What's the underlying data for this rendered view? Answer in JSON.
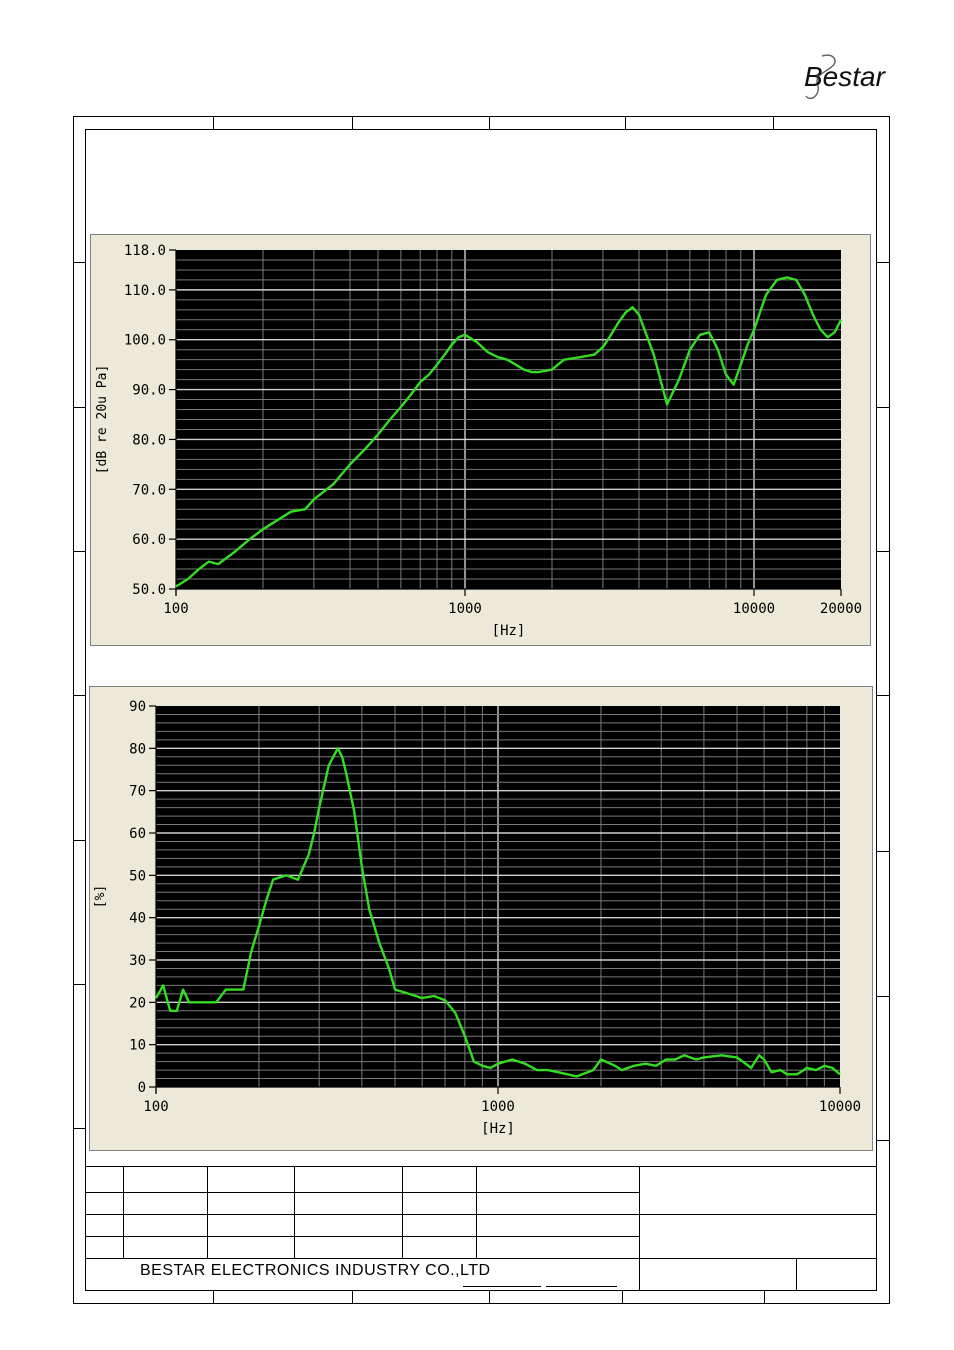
{
  "logo": {
    "text": "Bestar"
  },
  "company": "BESTAR  ELECTRONICS  INDUSTRY  CO.,LTD",
  "colors": {
    "plot_bg": "#000000",
    "panel_bg": "#ece9d8",
    "curve": "#33dd22",
    "grid": "#7a7a7a",
    "grid_major": "#d0d0d0"
  },
  "chart_data": [
    {
      "type": "line",
      "xscale": "log",
      "xlabel": "[Hz]",
      "ylabel": "[dB re 20u Pa]",
      "xlim": [
        100,
        20000
      ],
      "ylim": [
        50,
        118
      ],
      "xticks": [
        100,
        1000,
        10000,
        20000
      ],
      "xtick_labels": [
        "100",
        "1000",
        "10000",
        "20000"
      ],
      "yticks": [
        50,
        60,
        70,
        80,
        90,
        100,
        110,
        118
      ],
      "ytick_labels": [
        "50.0",
        "60.0",
        "70.0",
        "80.0",
        "90.0",
        "100.0",
        "110.0",
        "118.0"
      ],
      "grid": true,
      "series": [
        {
          "x": [
            100,
            110,
            120,
            130,
            140,
            160,
            180,
            200,
            220,
            250,
            280,
            300,
            350,
            400,
            450,
            500,
            550,
            600,
            650,
            700,
            750,
            800,
            850,
            900,
            950,
            1000,
            1100,
            1200,
            1300,
            1400,
            1500,
            1600,
            1700,
            1800,
            2000,
            2200,
            2500,
            2800,
            3000,
            3200,
            3400,
            3600,
            3800,
            4000,
            4500,
            5000,
            5500,
            6000,
            6500,
            7000,
            7500,
            8000,
            8500,
            9000,
            9500,
            10000,
            11000,
            12000,
            13000,
            14000,
            15000,
            16000,
            17000,
            18000,
            19000,
            20000
          ],
          "y": [
            50.5,
            52,
            54,
            55.5,
            55,
            57.5,
            60,
            62,
            63.5,
            65.5,
            66,
            68,
            71,
            75,
            78,
            81,
            84,
            86.5,
            89,
            91.5,
            93,
            95,
            97,
            99,
            100.5,
            101,
            99.5,
            97.5,
            96.5,
            96,
            95,
            94,
            93.5,
            93.5,
            94,
            96,
            96.5,
            97,
            98.5,
            101,
            103.5,
            105.5,
            106.5,
            105,
            97,
            87,
            92,
            98,
            101,
            101.5,
            98,
            93,
            91,
            95,
            99,
            102,
            109,
            112,
            112.5,
            112,
            109,
            105,
            102,
            100.5,
            101.5,
            104
          ]
        }
      ]
    },
    {
      "type": "line",
      "xscale": "log",
      "xlabel": "[Hz]",
      "ylabel": "[%]",
      "xlim": [
        100,
        10000
      ],
      "ylim": [
        0,
        90
      ],
      "xticks": [
        100,
        1000,
        10000
      ],
      "xtick_labels": [
        "100",
        "1000",
        "10000"
      ],
      "yticks": [
        0,
        10,
        20,
        30,
        40,
        50,
        60,
        70,
        80,
        90
      ],
      "ytick_labels": [
        "0",
        "10",
        "20",
        "30",
        "40",
        "50",
        "60",
        "70",
        "80",
        "90"
      ],
      "grid": true,
      "series": [
        {
          "x": [
            100,
            105,
            110,
            115,
            120,
            125,
            130,
            135,
            140,
            150,
            160,
            170,
            180,
            190,
            200,
            210,
            220,
            240,
            260,
            280,
            290,
            300,
            320,
            340,
            350,
            360,
            380,
            400,
            420,
            450,
            480,
            500,
            550,
            600,
            650,
            700,
            750,
            800,
            850,
            900,
            950,
            1000,
            1100,
            1200,
            1300,
            1400,
            1500,
            1700,
            1900,
            2000,
            2200,
            2300,
            2400,
            2500,
            2700,
            2900,
            3100,
            3300,
            3500,
            3800,
            4000,
            4500,
            5000,
            5500,
            5800,
            6000,
            6300,
            6700,
            7000,
            7500,
            8000,
            8500,
            9000,
            9500,
            10000
          ],
          "y": [
            21,
            24,
            18,
            18,
            23,
            20,
            20,
            20,
            20,
            20,
            23,
            23,
            23,
            32,
            38,
            44,
            49,
            50,
            49,
            55,
            60,
            66,
            76,
            80,
            78,
            74,
            65,
            52,
            42,
            34,
            28,
            23,
            22,
            21,
            21.5,
            20.5,
            17.5,
            12,
            6,
            5,
            4.5,
            5.5,
            6.5,
            5.5,
            4,
            4,
            3.5,
            2.5,
            4,
            6.5,
            5,
            4,
            4.5,
            5,
            5.5,
            5,
            6.5,
            6.5,
            7.5,
            6.5,
            7,
            7.5,
            7,
            4.5,
            7.5,
            6.5,
            3.5,
            4,
            3,
            3,
            4.5,
            4,
            5,
            4.5,
            3
          ]
        }
      ]
    }
  ]
}
